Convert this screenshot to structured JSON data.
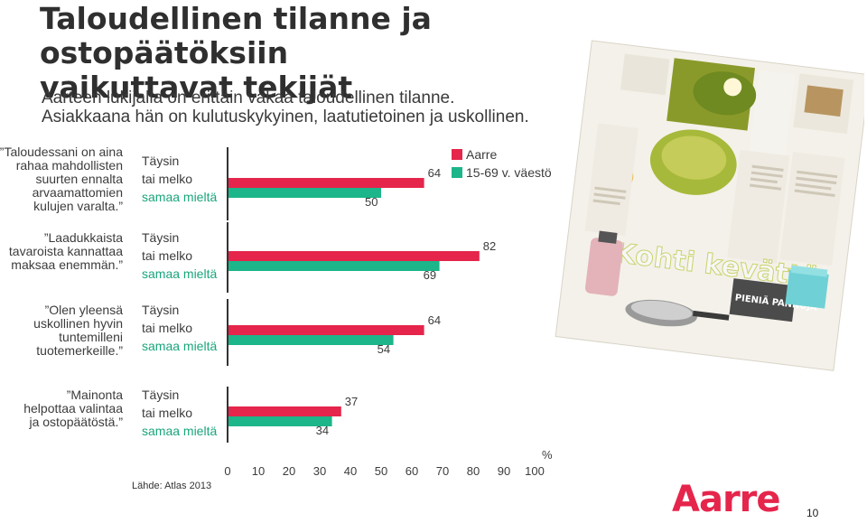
{
  "page": {
    "title_line1": "Taloudellinen tilanne ja ostopäätöksiin",
    "title_line2": "vaikuttavat tekijät",
    "subtitle_line1": "Aarteen lukijalla on erittäin vakaa taloudellinen tilanne.",
    "subtitle_line2": "Asiakkaana hän on kulutuskykyinen, laatutietoinen ja uskollinen.",
    "source": "Lähde: Atlas 2013",
    "page_number": "10",
    "logo_text": "Aarre",
    "magazine_headline": "Kohti kevättä",
    "magazine_subheadline": "PIENIÄ PANNUJA"
  },
  "colors": {
    "aarre": "#e5254b",
    "population": "#1db58a",
    "text": "#3c3c3c",
    "answer_highlight": "#1aa57c",
    "axis": "#333333"
  },
  "chart_data": {
    "type": "bar",
    "orientation": "horizontal",
    "unit": "%",
    "xlim": [
      0,
      100
    ],
    "x_ticks": [
      "0",
      "10",
      "20",
      "30",
      "40",
      "50",
      "60",
      "70",
      "80",
      "90",
      "100"
    ],
    "legend_position": "top-right",
    "series": [
      {
        "name": "Aarre",
        "color": "#e5254b"
      },
      {
        "name": "15-69 v. väestö",
        "color": "#1db58a"
      }
    ],
    "categories": [
      {
        "statement": [
          "”Taloudessani on aina",
          "rahaa mahdollisten",
          "suurten ennalta",
          "arvaamattomien",
          "kulujen varalta.”"
        ],
        "answer": [
          "Täysin",
          "tai melko",
          "samaa mieltä"
        ],
        "aarre": 64,
        "population": 50
      },
      {
        "statement": [
          "”Laadukkaista",
          "tavaroista kannattaa",
          "maksaa enemmän.”"
        ],
        "answer": [
          "Täysin",
          "tai melko",
          "samaa mieltä"
        ],
        "aarre": 82,
        "population": 69
      },
      {
        "statement": [
          "”Olen yleensä",
          "uskollinen hyvin",
          "tuntemilleni",
          "tuotemerkeille.”"
        ],
        "answer": [
          "Täysin",
          "tai melko",
          "samaa mieltä"
        ],
        "aarre": 64,
        "population": 54
      },
      {
        "statement": [
          "”Mainonta",
          "helpottaa valintaa",
          "ja ostopäätöstä.”"
        ],
        "answer": [
          "Täysin",
          "tai melko",
          "samaa mieltä"
        ],
        "aarre": 37,
        "population": 34
      }
    ]
  }
}
